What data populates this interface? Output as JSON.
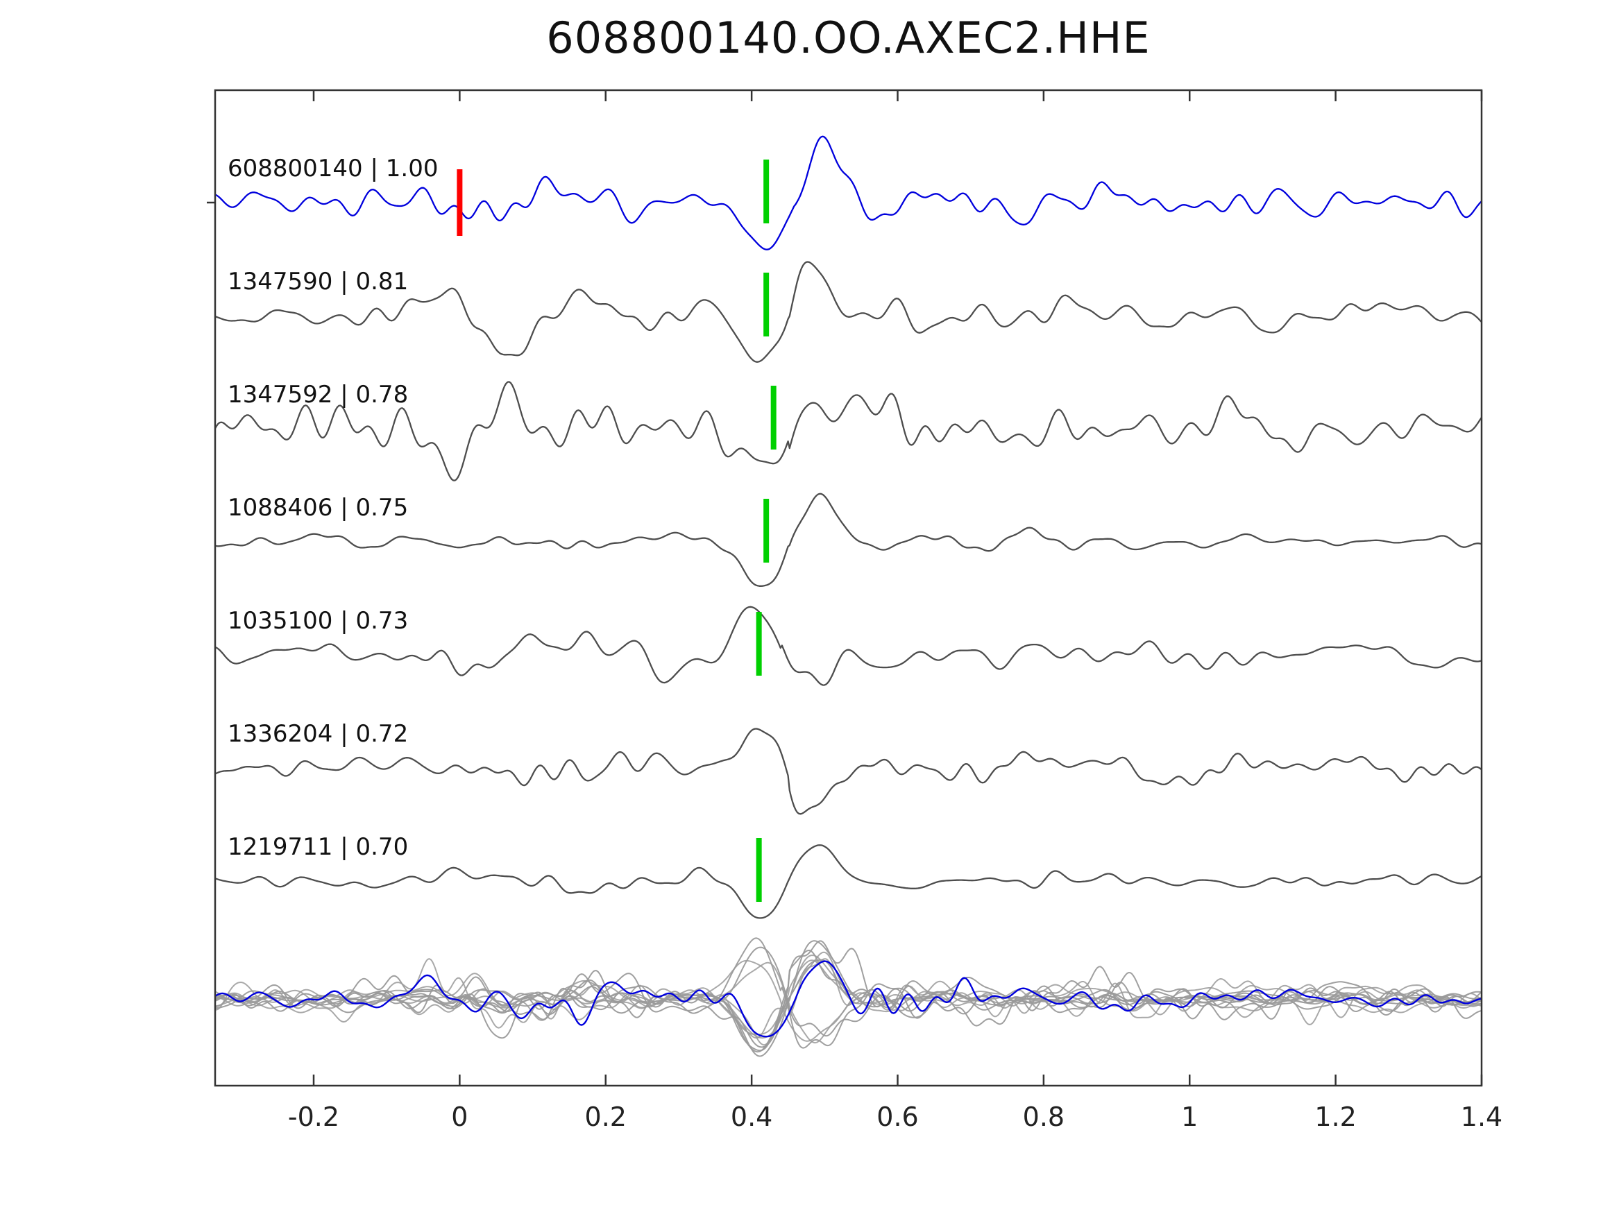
{
  "title": "608800140.OO.AXEC2.HHE",
  "colors": {
    "reference_trace": "#0000dd",
    "match_trace": "#4d4d4d",
    "overlay_gray": "#9a9a9a",
    "pick_green": "#00d000",
    "pick_red": "#ff0000",
    "axis": "#333333",
    "text": "#111111"
  },
  "axis": {
    "x_tick_labels": [
      "-0.2",
      "0",
      "0.2",
      "0.4",
      "0.6",
      "0.8",
      "1",
      "1.2",
      "1.4"
    ],
    "x_tick_values": [
      -0.2,
      0,
      0.2,
      0.4,
      0.6,
      0.8,
      1,
      1.2,
      1.4
    ],
    "xlim": [
      -0.335,
      1.4
    ],
    "grid": false,
    "legend": false
  },
  "chart_data": {
    "type": "line",
    "title": "608800140.OO.AXEC2.HHE",
    "xlabel": "",
    "ylabel": "",
    "xlim": [
      -0.335,
      1.4
    ],
    "x_tick_values": [
      -0.2,
      0,
      0.2,
      0.4,
      0.6,
      0.8,
      1,
      1.2,
      1.4
    ],
    "x_tick_labels": [
      "-0.2",
      "0",
      "0.2",
      "0.4",
      "0.6",
      "0.8",
      "1",
      "1.2",
      "1.4"
    ],
    "description": "Reference seismic waveform (blue) compared with six matched template waveforms (gray); each row label is 'event_id | correlation'. Red bar = reference origin pick at t=0, green bars = phase picks near t=0.42. Bottom row overlays all traces.",
    "traces": [
      {
        "label": "608800140 | 1.00",
        "event_id": "608800140",
        "similarity": 1.0,
        "role": "reference",
        "color": "#0000dd",
        "red_pick_x": 0.0,
        "green_pick_x": 0.42,
        "approx_params": {
          "seed": 11,
          "noise_amp": 8,
          "burst_amp": 0.9,
          "burst_t": 0.1,
          "coda": 1.5,
          "pulse_t": 0.46,
          "pulse_amp": 90,
          "pulse_freq": 5,
          "pulse_sigma": 0.055,
          "pol": 1
        }
      },
      {
        "label": "1347590 | 0.81",
        "event_id": "1347590",
        "similarity": 0.81,
        "role": "match",
        "color": "#4d4d4d",
        "red_pick_x": null,
        "green_pick_x": 0.42,
        "approx_params": {
          "seed": 22,
          "noise_amp": 10,
          "burst_amp": 1.6,
          "burst_t": 0.07,
          "coda": 1.1,
          "pulse_t": 0.45,
          "pulse_amp": 80,
          "pulse_freq": 5,
          "pulse_sigma": 0.05,
          "pol": 1
        }
      },
      {
        "label": "1347592 | 0.78",
        "event_id": "1347592",
        "similarity": 0.78,
        "role": "match",
        "color": "#4d4d4d",
        "red_pick_x": null,
        "green_pick_x": 0.43,
        "approx_params": {
          "seed": 33,
          "noise_amp": 13,
          "burst_amp": 1.2,
          "burst_t": 0.05,
          "coda": 1.0,
          "pulse_t": 0.45,
          "pulse_amp": 75,
          "pulse_freq": 5,
          "pulse_sigma": 0.05,
          "pol": 1
        }
      },
      {
        "label": "1088406 | 0.75",
        "event_id": "1088406",
        "similarity": 0.75,
        "role": "match",
        "color": "#4d4d4d",
        "red_pick_x": null,
        "green_pick_x": 0.42,
        "approx_params": {
          "seed": 44,
          "noise_amp": 4.5,
          "burst_amp": 0.8,
          "burst_t": 0.1,
          "coda": 0.7,
          "pulse_t": 0.45,
          "pulse_amp": 95,
          "pulse_freq": 5,
          "pulse_sigma": 0.05,
          "pol": 1
        }
      },
      {
        "label": "1035100 | 0.73",
        "event_id": "1035100",
        "similarity": 0.73,
        "role": "match",
        "color": "#4d4d4d",
        "red_pick_x": null,
        "green_pick_x": 0.41,
        "approx_params": {
          "seed": 55,
          "noise_amp": 9,
          "burst_amp": 1.4,
          "burst_t": 0.12,
          "coda": 1.0,
          "pulse_t": 0.44,
          "pulse_amp": 88,
          "pulse_freq": 5,
          "pulse_sigma": 0.05,
          "pol": -1
        }
      },
      {
        "label": "1336204 | 0.72",
        "event_id": "1336204",
        "similarity": 0.72,
        "role": "match",
        "color": "#4d4d4d",
        "red_pick_x": null,
        "green_pick_x": null,
        "approx_params": {
          "seed": 66,
          "noise_amp": 8,
          "burst_amp": 0.5,
          "burst_t": 0.15,
          "coda": 1.0,
          "pulse_t": 0.45,
          "pulse_amp": 78,
          "pulse_freq": 5,
          "pulse_sigma": 0.05,
          "pol": -1
        }
      },
      {
        "label": "1219711 | 0.70",
        "event_id": "1219711",
        "similarity": 0.7,
        "role": "match",
        "color": "#4d4d4d",
        "red_pick_x": null,
        "green_pick_x": 0.41,
        "approx_params": {
          "seed": 77,
          "noise_amp": 6,
          "burst_amp": 0.5,
          "burst_t": 0.1,
          "coda": 0.9,
          "pulse_t": 0.45,
          "pulse_amp": 82,
          "pulse_freq": 5,
          "pulse_sigma": 0.055,
          "pol": 1
        }
      }
    ],
    "overlay": {
      "present": true,
      "gray_color": "#9a9a9a",
      "blue_color": "#0000dd"
    }
  }
}
